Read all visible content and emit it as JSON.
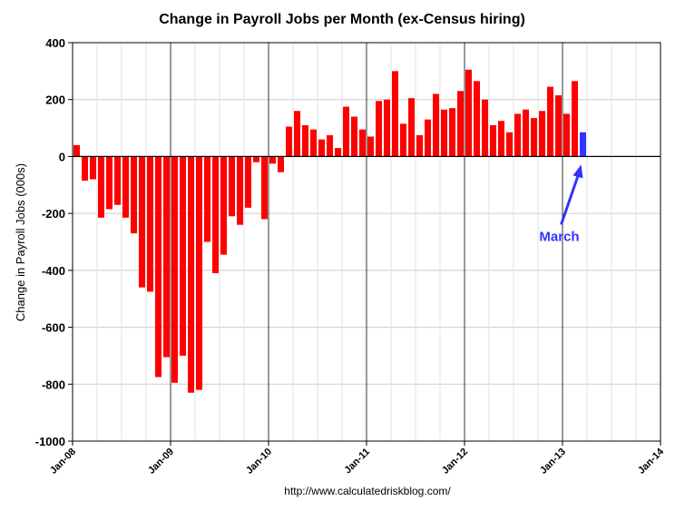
{
  "chart_data": {
    "type": "bar",
    "title": "Change in Payroll Jobs per Month (ex-Census hiring)",
    "ylabel": "Change in Payroll Jobs (000s)",
    "xlabel": "",
    "ylim": [
      -1000,
      400
    ],
    "yticks": [
      400,
      200,
      0,
      -200,
      -400,
      -600,
      -800,
      -1000
    ],
    "xlim": [
      "2008-01",
      "2014-01"
    ],
    "xticks": [
      "Jan-08",
      "Jan-09",
      "Jan-10",
      "Jan-11",
      "Jan-12",
      "Jan-13",
      "Jan-14"
    ],
    "grid": true,
    "bar_color": "#ff0000",
    "highlight_color": "#3333ff",
    "months": [
      "2008-01",
      "2008-02",
      "2008-03",
      "2008-04",
      "2008-05",
      "2008-06",
      "2008-07",
      "2008-08",
      "2008-09",
      "2008-10",
      "2008-11",
      "2008-12",
      "2009-01",
      "2009-02",
      "2009-03",
      "2009-04",
      "2009-05",
      "2009-06",
      "2009-07",
      "2009-08",
      "2009-09",
      "2009-10",
      "2009-11",
      "2009-12",
      "2010-01",
      "2010-02",
      "2010-03",
      "2010-04",
      "2010-05",
      "2010-06",
      "2010-07",
      "2010-08",
      "2010-09",
      "2010-10",
      "2010-11",
      "2010-12",
      "2011-01",
      "2011-02",
      "2011-03",
      "2011-04",
      "2011-05",
      "2011-06",
      "2011-07",
      "2011-08",
      "2011-09",
      "2011-10",
      "2011-11",
      "2011-12",
      "2012-01",
      "2012-02",
      "2012-03",
      "2012-04",
      "2012-05",
      "2012-06",
      "2012-07",
      "2012-08",
      "2012-09",
      "2012-10",
      "2012-11",
      "2012-12",
      "2013-01",
      "2013-02",
      "2013-03"
    ],
    "values": [
      40,
      -85,
      -80,
      -215,
      -185,
      -170,
      -215,
      -270,
      -460,
      -475,
      -775,
      -705,
      -795,
      -700,
      -830,
      -820,
      -300,
      -410,
      -345,
      -210,
      -240,
      -180,
      -20,
      -220,
      -25,
      -55,
      105,
      160,
      110,
      95,
      60,
      75,
      30,
      175,
      140,
      95,
      70,
      195,
      200,
      300,
      115,
      205,
      75,
      130,
      220,
      165,
      170,
      230,
      305,
      265,
      200,
      110,
      125,
      85,
      150,
      165,
      135,
      160,
      245,
      215,
      150,
      265,
      85
    ],
    "highlight_month": "2013-03",
    "annotation": {
      "text": "March",
      "color": "#3333ff"
    },
    "source": "http://www.calculatedriskblog.com/"
  }
}
